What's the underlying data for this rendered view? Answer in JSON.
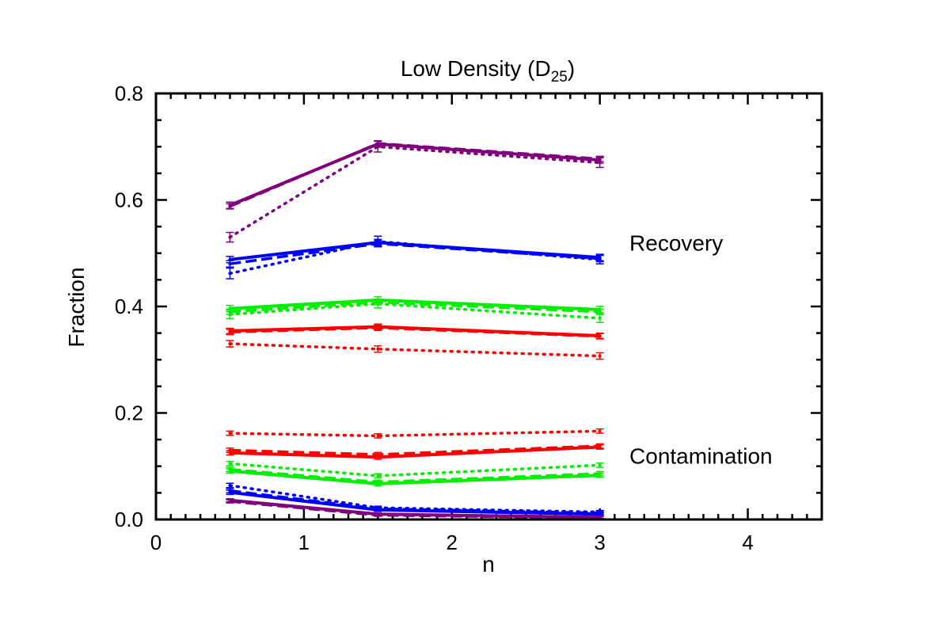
{
  "chart_data": {
    "type": "line",
    "title": "Low Density (D",
    "title_sub": "25",
    "title_close": ")",
    "xlabel": "n",
    "ylabel": "Fraction",
    "xlim": [
      0,
      4.5
    ],
    "ylim": [
      0,
      0.8
    ],
    "xticks": [
      0,
      1,
      2,
      3,
      4
    ],
    "xtick_labels": [
      "0",
      "1",
      "2",
      "3",
      "4"
    ],
    "yticks": [
      0.0,
      0.2,
      0.4,
      0.6,
      0.8
    ],
    "ytick_labels": [
      "0.0",
      "0.2",
      "0.4",
      "0.6",
      "0.8"
    ],
    "annotations": [
      {
        "text": "Recovery",
        "x": 3.2,
        "y": 0.505
      },
      {
        "text": "Contamination",
        "x": 3.2,
        "y": 0.105
      }
    ],
    "x": [
      0.5,
      1.5,
      3.0
    ],
    "series": [
      {
        "name": "purple-recovery-solid",
        "group": "Recovery",
        "color": "#800080",
        "style": "solid",
        "values": [
          0.59,
          0.705,
          0.675
        ],
        "err": [
          0.006,
          0.006,
          0.006
        ]
      },
      {
        "name": "purple-recovery-dashed",
        "group": "Recovery",
        "color": "#800080",
        "style": "dashed",
        "values": [
          0.588,
          0.706,
          0.677
        ],
        "err": [
          0.005,
          0.005,
          0.005
        ]
      },
      {
        "name": "purple-recovery-dotted",
        "group": "Recovery",
        "color": "#800080",
        "style": "dotted",
        "values": [
          0.53,
          0.7,
          0.67
        ],
        "err": [
          0.009,
          0.01,
          0.009
        ]
      },
      {
        "name": "blue-recovery-solid",
        "group": "Recovery",
        "color": "#0000ff",
        "style": "solid",
        "values": [
          0.488,
          0.52,
          0.492
        ],
        "err": [
          0.006,
          0.006,
          0.006
        ]
      },
      {
        "name": "blue-recovery-dashed",
        "group": "Recovery",
        "color": "#0000ff",
        "style": "dashed",
        "values": [
          0.48,
          0.518,
          0.49
        ],
        "err": [
          0.006,
          0.006,
          0.006
        ]
      },
      {
        "name": "blue-recovery-dotted",
        "group": "Recovery",
        "color": "#0000ff",
        "style": "dotted",
        "values": [
          0.462,
          0.522,
          0.488
        ],
        "err": [
          0.01,
          0.01,
          0.008
        ]
      },
      {
        "name": "green-recovery-solid",
        "group": "Recovery",
        "color": "#00ee00",
        "style": "solid",
        "values": [
          0.396,
          0.412,
          0.394
        ],
        "err": [
          0.006,
          0.006,
          0.006
        ]
      },
      {
        "name": "green-recovery-dashed",
        "group": "Recovery",
        "color": "#00ee00",
        "style": "dashed",
        "values": [
          0.39,
          0.408,
          0.39
        ],
        "err": [
          0.005,
          0.005,
          0.005
        ]
      },
      {
        "name": "green-recovery-dotted",
        "group": "Recovery",
        "color": "#00ee00",
        "style": "dotted",
        "values": [
          0.385,
          0.405,
          0.378
        ],
        "err": [
          0.008,
          0.008,
          0.008
        ]
      },
      {
        "name": "red-recovery-solid",
        "group": "Recovery",
        "color": "#ff0000",
        "style": "solid",
        "values": [
          0.354,
          0.362,
          0.345
        ],
        "err": [
          0.005,
          0.005,
          0.005
        ]
      },
      {
        "name": "red-recovery-dashed",
        "group": "Recovery",
        "color": "#ff0000",
        "style": "dashed",
        "values": [
          0.352,
          0.36,
          0.344
        ],
        "err": [
          0.005,
          0.005,
          0.005
        ]
      },
      {
        "name": "red-recovery-dotted",
        "group": "Recovery",
        "color": "#ff0000",
        "style": "dotted",
        "values": [
          0.33,
          0.32,
          0.307
        ],
        "err": [
          0.006,
          0.006,
          0.006
        ]
      },
      {
        "name": "red-contam-dotted",
        "group": "Contamination",
        "color": "#ff0000",
        "style": "dotted",
        "values": [
          0.162,
          0.157,
          0.166
        ],
        "err": [
          0.004,
          0.004,
          0.004
        ]
      },
      {
        "name": "red-contam-dashed",
        "group": "Contamination",
        "color": "#ff0000",
        "style": "dashed",
        "values": [
          0.13,
          0.122,
          0.138
        ],
        "err": [
          0.004,
          0.004,
          0.004
        ]
      },
      {
        "name": "red-contam-solid",
        "group": "Contamination",
        "color": "#ff0000",
        "style": "solid",
        "values": [
          0.125,
          0.117,
          0.136
        ],
        "err": [
          0.004,
          0.004,
          0.004
        ]
      },
      {
        "name": "green-contam-dotted",
        "group": "Contamination",
        "color": "#00ee00",
        "style": "dotted",
        "values": [
          0.105,
          0.082,
          0.102
        ],
        "err": [
          0.004,
          0.004,
          0.004
        ]
      },
      {
        "name": "green-contam-dashed",
        "group": "Contamination",
        "color": "#00ee00",
        "style": "dashed",
        "values": [
          0.094,
          0.07,
          0.086
        ],
        "err": [
          0.004,
          0.004,
          0.004
        ]
      },
      {
        "name": "green-contam-solid",
        "group": "Contamination",
        "color": "#00ee00",
        "style": "solid",
        "values": [
          0.091,
          0.067,
          0.083
        ],
        "err": [
          0.004,
          0.004,
          0.004
        ]
      },
      {
        "name": "blue-contam-dotted",
        "group": "Contamination",
        "color": "#0000ff",
        "style": "dotted",
        "values": [
          0.064,
          0.022,
          0.014
        ],
        "err": [
          0.004,
          0.003,
          0.003
        ]
      },
      {
        "name": "blue-contam-dashed",
        "group": "Contamination",
        "color": "#0000ff",
        "style": "dashed",
        "values": [
          0.054,
          0.02,
          0.012
        ],
        "err": [
          0.004,
          0.003,
          0.003
        ]
      },
      {
        "name": "blue-contam-solid",
        "group": "Contamination",
        "color": "#0000ff",
        "style": "solid",
        "values": [
          0.051,
          0.018,
          0.01
        ],
        "err": [
          0.004,
          0.003,
          0.003
        ]
      },
      {
        "name": "purple-contam-solid",
        "group": "Contamination",
        "color": "#800080",
        "style": "solid",
        "values": [
          0.036,
          0.01,
          0.004
        ],
        "err": [
          0.003,
          0.002,
          0.002
        ]
      },
      {
        "name": "purple-contam-dashed",
        "group": "Contamination",
        "color": "#800080",
        "style": "dashed",
        "values": [
          0.034,
          0.008,
          0.003
        ],
        "err": [
          0.003,
          0.002,
          0.002
        ]
      }
    ]
  }
}
